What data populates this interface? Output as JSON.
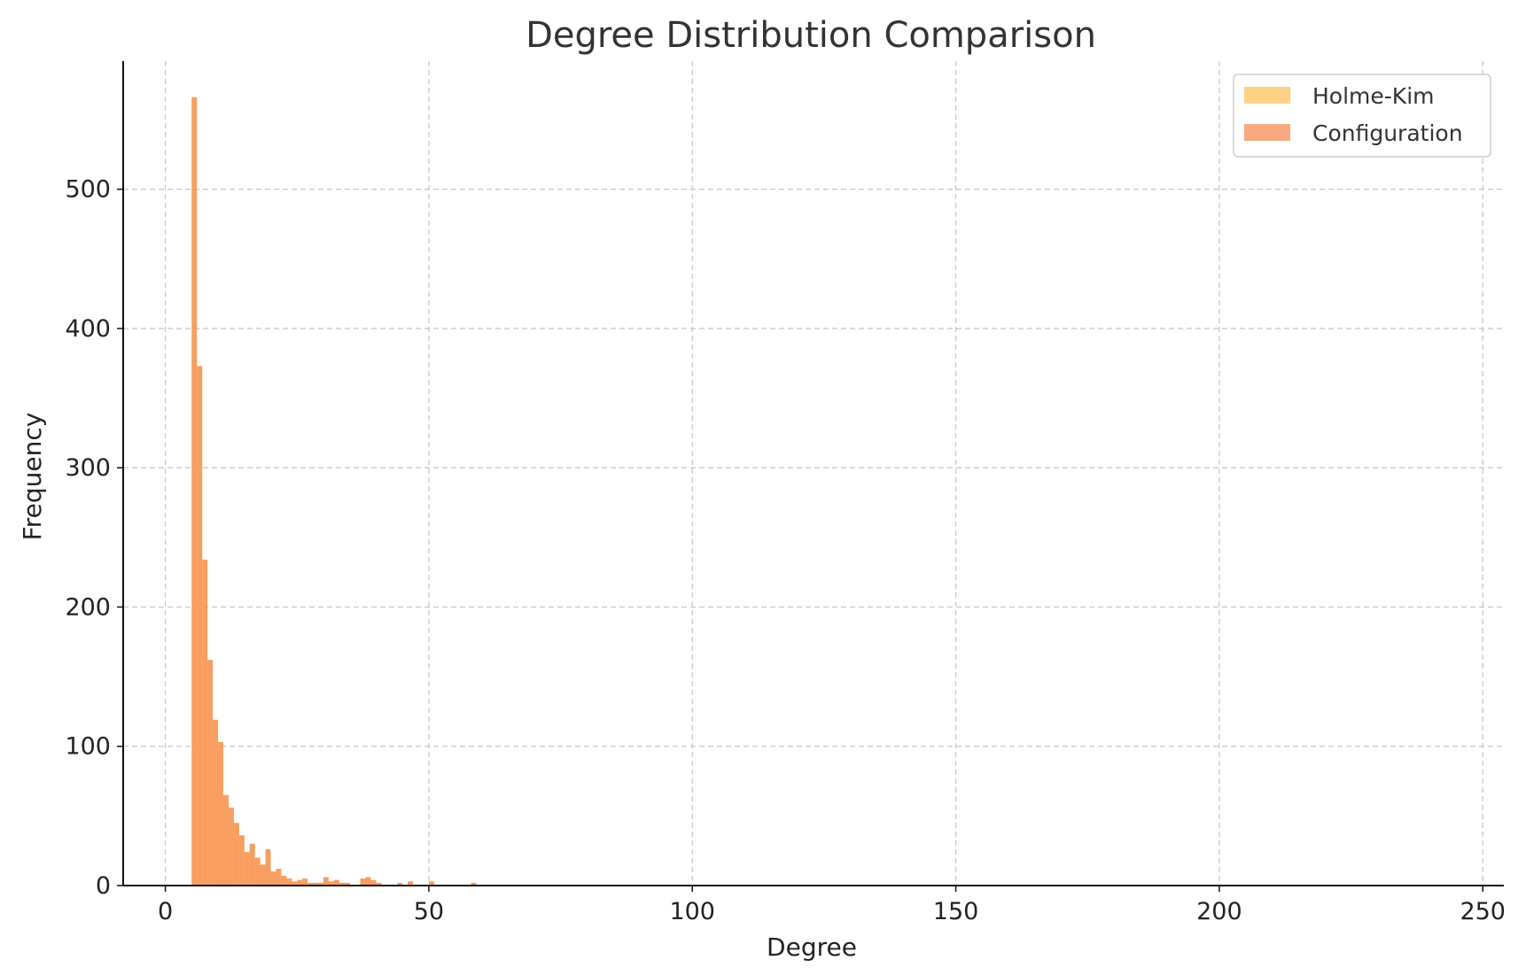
{
  "chart_data": {
    "type": "bar",
    "title": "Degree Distribution Comparison",
    "xlabel": "Degree",
    "ylabel": "Frequency",
    "xlim": [
      -8,
      254
    ],
    "ylim": [
      0,
      592
    ],
    "xticks": [
      0,
      50,
      100,
      150,
      200,
      250
    ],
    "yticks": [
      0,
      100,
      200,
      300,
      400,
      500
    ],
    "grid": true,
    "legend_position": "top-right",
    "bin_width": 1,
    "series": [
      {
        "name": "Holme-Kim",
        "color": "#fdc35c",
        "bins": [
          [
            5,
            566
          ],
          [
            6,
            373
          ],
          [
            7,
            234
          ],
          [
            8,
            162
          ],
          [
            9,
            119
          ],
          [
            10,
            103
          ],
          [
            11,
            65
          ],
          [
            12,
            56
          ],
          [
            13,
            45
          ],
          [
            14,
            36
          ],
          [
            15,
            24
          ],
          [
            16,
            30
          ],
          [
            17,
            20
          ],
          [
            18,
            15
          ],
          [
            19,
            26
          ],
          [
            20,
            10
          ],
          [
            21,
            12
          ],
          [
            22,
            7
          ],
          [
            23,
            5
          ],
          [
            24,
            3
          ],
          [
            25,
            4
          ],
          [
            26,
            5
          ],
          [
            27,
            2
          ],
          [
            28,
            2
          ],
          [
            29,
            2
          ],
          [
            30,
            6
          ],
          [
            31,
            3
          ],
          [
            32,
            4
          ],
          [
            33,
            2
          ],
          [
            34,
            2
          ],
          [
            37,
            5
          ],
          [
            38,
            6
          ],
          [
            39,
            4
          ],
          [
            40,
            2
          ],
          [
            44,
            2
          ],
          [
            46,
            3
          ],
          [
            50,
            3
          ],
          [
            58,
            2
          ]
        ]
      },
      {
        "name": "Configuration",
        "color": "#f58c55",
        "bins": [
          [
            5,
            566
          ],
          [
            6,
            373
          ],
          [
            7,
            234
          ],
          [
            8,
            162
          ],
          [
            9,
            119
          ],
          [
            10,
            103
          ],
          [
            11,
            65
          ],
          [
            12,
            56
          ],
          [
            13,
            45
          ],
          [
            14,
            36
          ],
          [
            15,
            24
          ],
          [
            16,
            30
          ],
          [
            17,
            20
          ],
          [
            18,
            15
          ],
          [
            19,
            26
          ],
          [
            20,
            10
          ],
          [
            21,
            12
          ],
          [
            22,
            7
          ],
          [
            23,
            5
          ],
          [
            24,
            3
          ],
          [
            25,
            4
          ],
          [
            26,
            5
          ],
          [
            27,
            2
          ],
          [
            28,
            2
          ],
          [
            29,
            2
          ],
          [
            30,
            6
          ],
          [
            31,
            3
          ],
          [
            32,
            4
          ],
          [
            33,
            2
          ],
          [
            34,
            2
          ],
          [
            37,
            5
          ],
          [
            38,
            6
          ],
          [
            39,
            4
          ],
          [
            40,
            2
          ],
          [
            44,
            2
          ],
          [
            46,
            3
          ],
          [
            50,
            3
          ],
          [
            58,
            2
          ]
        ]
      }
    ]
  }
}
